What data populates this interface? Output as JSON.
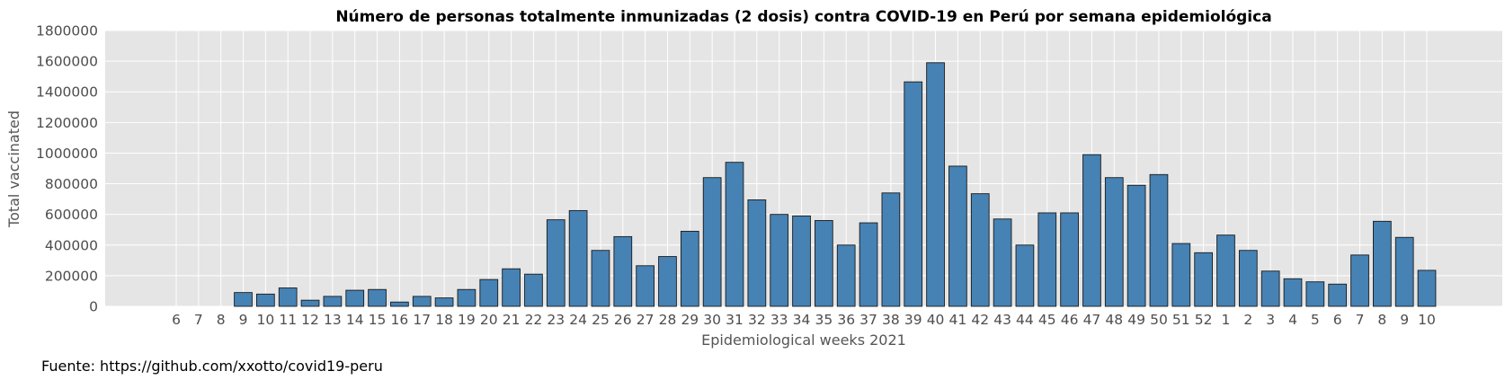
{
  "chart_data": {
    "type": "bar",
    "title": "Número de personas totalmente inmunizadas (2 dosis) contra COVID-19 en Perú por semana epidemiológica",
    "xlabel": "Epidemiological weeks 2021",
    "ylabel": "Total vaccinated",
    "ylim": [
      0,
      1800000
    ],
    "yticks": [
      0,
      200000,
      400000,
      600000,
      800000,
      1000000,
      1200000,
      1400000,
      1600000,
      1800000
    ],
    "grid": true,
    "categories": [
      "6",
      "7",
      "8",
      "9",
      "10",
      "11",
      "12",
      "13",
      "14",
      "15",
      "16",
      "17",
      "18",
      "19",
      "20",
      "21",
      "22",
      "23",
      "24",
      "25",
      "26",
      "27",
      "28",
      "29",
      "30",
      "31",
      "32",
      "33",
      "34",
      "35",
      "36",
      "37",
      "38",
      "39",
      "40",
      "41",
      "42",
      "43",
      "44",
      "45",
      "46",
      "47",
      "48",
      "49",
      "50",
      "51",
      "52",
      "1",
      "2",
      "3",
      "4",
      "5",
      "6",
      "7",
      "8",
      "9",
      "10"
    ],
    "values": [
      0,
      0,
      0,
      90000,
      80000,
      120000,
      40000,
      65000,
      105000,
      110000,
      28000,
      65000,
      55000,
      110000,
      175000,
      245000,
      210000,
      565000,
      625000,
      365000,
      455000,
      265000,
      325000,
      490000,
      840000,
      940000,
      695000,
      600000,
      590000,
      560000,
      400000,
      545000,
      740000,
      1465000,
      1590000,
      915000,
      735000,
      570000,
      400000,
      610000,
      610000,
      990000,
      840000,
      790000,
      860000,
      410000,
      350000,
      465000,
      365000,
      230000,
      180000,
      160000,
      145000,
      335000,
      555000,
      450000,
      235000
    ],
    "bar_color": "#4682b4",
    "bar_edge_color": "#1a1a1a",
    "background_color": "#e5e5e5",
    "grid_color": "#ffffff"
  },
  "source_note": "Fuente: https://github.com/xxotto/covid19-peru"
}
